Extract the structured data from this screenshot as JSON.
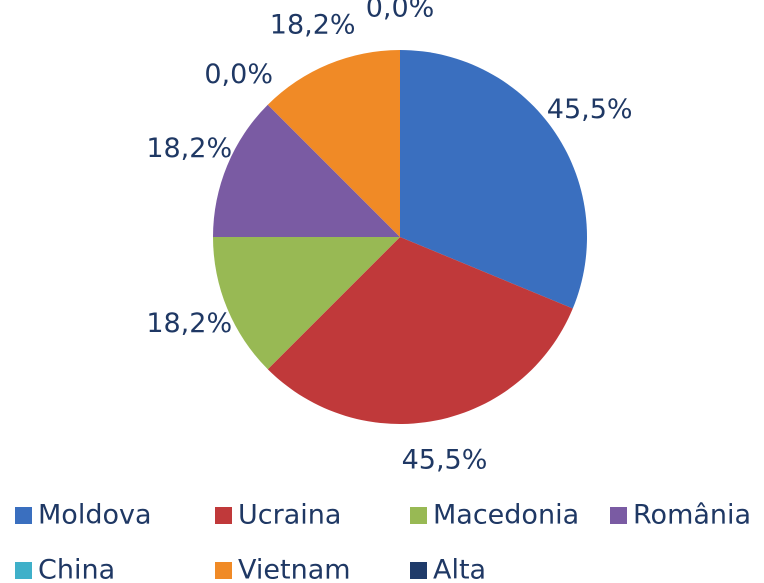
{
  "chart_data": {
    "type": "pie",
    "categories": [
      "Moldova",
      "Ucraina",
      "Macedonia",
      "România",
      "China",
      "Vietnam",
      "Alta"
    ],
    "values": [
      45.5,
      45.5,
      18.2,
      18.2,
      0,
      18.2,
      0
    ],
    "value_labels": [
      "45,5%",
      "45,5%",
      "18,2%",
      "18,2%",
      "0,0%",
      "18,2%",
      "0,0%"
    ],
    "colors": [
      "#3a6fbf",
      "#c0393a",
      "#98b954",
      "#7a5ba3",
      "#3fb0c9",
      "#f08a26",
      "#1f3b6a"
    ],
    "legend": "bottom"
  }
}
